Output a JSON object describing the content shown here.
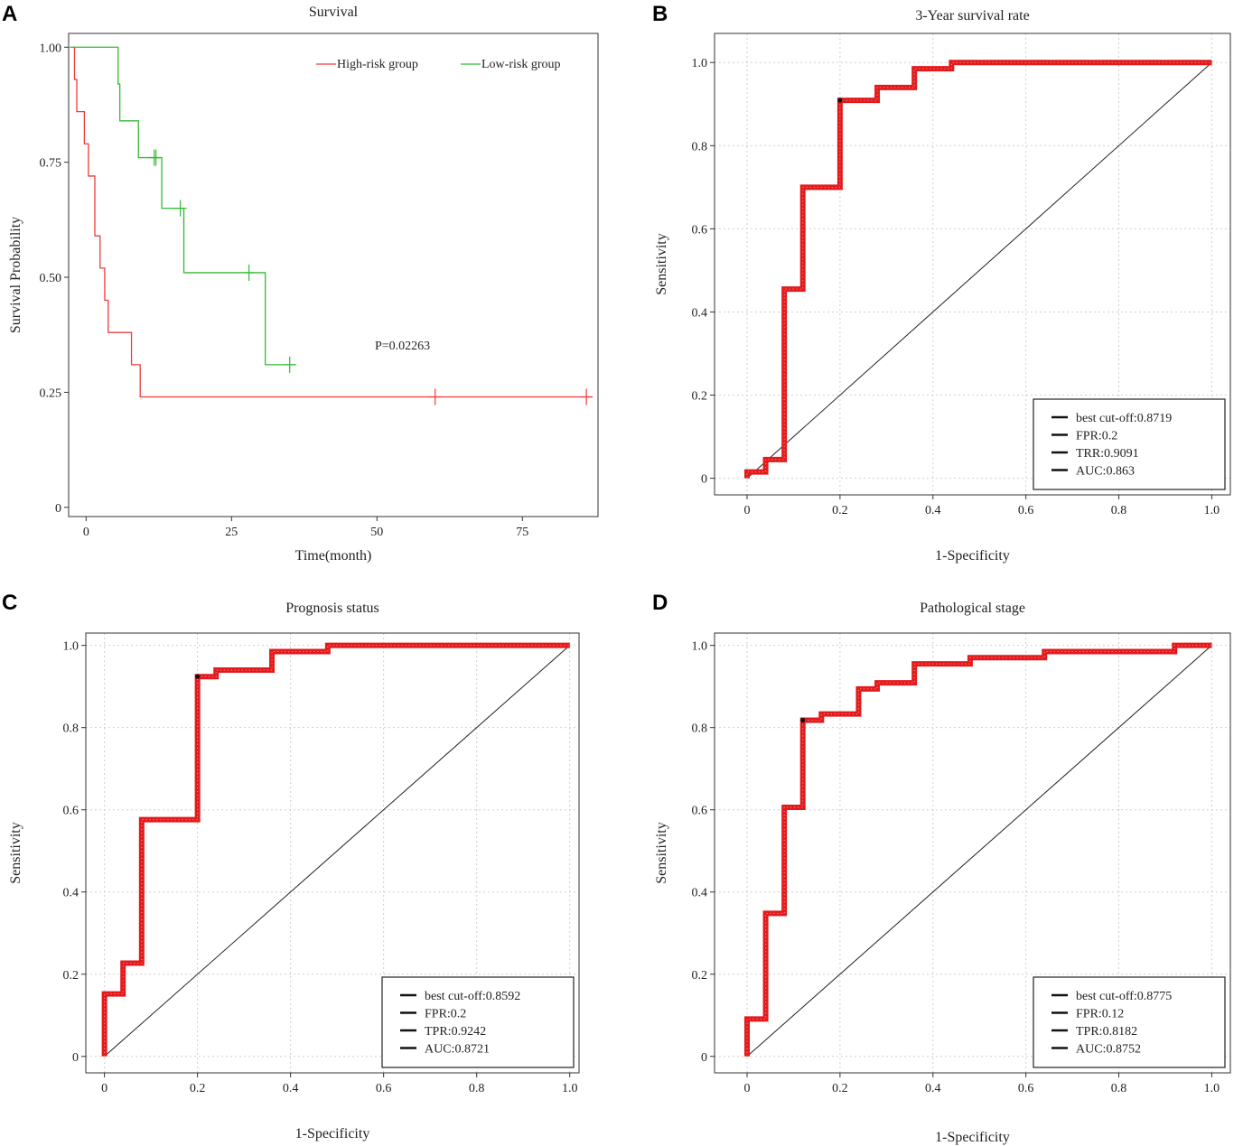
{
  "panels": [
    "A",
    "B",
    "C",
    "D"
  ],
  "chart_data": [
    {
      "type": "line",
      "subtype": "kaplan-meier",
      "title": "Survival",
      "xlabel": "Time(month)",
      "ylabel": "Survival Probability",
      "xlim": [
        -3,
        88
      ],
      "ylim": [
        -0.02,
        1.03
      ],
      "xticks": [
        0,
        25,
        50,
        75
      ],
      "xtick_labels": [
        "0",
        "25",
        "50",
        "75"
      ],
      "yticks": [
        0,
        0.25,
        0.5,
        0.75,
        1.0
      ],
      "ytick_labels": [
        "0",
        "0.25",
        "0.50",
        "0.75",
        "1.00"
      ],
      "grid": false,
      "legend_position": "top-right",
      "annotation": "P=0.02263",
      "series": [
        {
          "name": "High-risk group",
          "color": "#ee3b3b",
          "steps": [
            [
              -2.3,
              1.0
            ],
            [
              -2.0,
              0.93
            ],
            [
              -1.6,
              0.86
            ],
            [
              -0.3,
              0.79
            ],
            [
              0.4,
              0.72
            ],
            [
              1.5,
              0.59
            ],
            [
              2.4,
              0.52
            ],
            [
              3.2,
              0.45
            ],
            [
              3.8,
              0.38
            ],
            [
              7.8,
              0.31
            ],
            [
              9.3,
              0.24
            ],
            [
              87,
              0.24
            ]
          ],
          "censors": [
            [
              60,
              0.24
            ],
            [
              86,
              0.24
            ]
          ]
        },
        {
          "name": "Low-risk group",
          "color": "#33bb33",
          "steps": [
            [
              -2.8,
              1.0
            ],
            [
              5.5,
              0.92
            ],
            [
              5.8,
              0.84
            ],
            [
              9.0,
              0.76
            ],
            [
              13.0,
              0.65
            ],
            [
              16.8,
              0.51
            ],
            [
              30.8,
              0.31
            ],
            [
              36.0,
              0.31
            ]
          ],
          "censors": [
            [
              11.7,
              0.76
            ],
            [
              12.0,
              0.76
            ],
            [
              16.2,
              0.65
            ],
            [
              28.0,
              0.51
            ],
            [
              35.0,
              0.31
            ]
          ]
        }
      ]
    },
    {
      "type": "line",
      "subtype": "roc",
      "title": "3-Year survival rate",
      "xlabel": "1-Specificity",
      "ylabel": "Sensitivity",
      "xlim": [
        -0.07,
        1.04
      ],
      "ylim": [
        -0.04,
        1.07
      ],
      "ticks": [
        0,
        0.2,
        0.4,
        0.6,
        0.8,
        1.0
      ],
      "tick_labels": [
        "0",
        "0.2",
        "0.4",
        "0.6",
        "0.8",
        "1.0"
      ],
      "grid": true,
      "legend_position": "bottom-right",
      "curve_color": "#e31a1c",
      "roc": [
        [
          0,
          0
        ],
        [
          0,
          0.015
        ],
        [
          0.04,
          0.015
        ],
        [
          0.04,
          0.045
        ],
        [
          0.08,
          0.045
        ],
        [
          0.08,
          0.455
        ],
        [
          0.12,
          0.455
        ],
        [
          0.12,
          0.7
        ],
        [
          0.2,
          0.7
        ],
        [
          0.2,
          0.909
        ],
        [
          0.28,
          0.909
        ],
        [
          0.28,
          0.94
        ],
        [
          0.36,
          0.94
        ],
        [
          0.36,
          0.985
        ],
        [
          0.44,
          0.985
        ],
        [
          0.44,
          1.0
        ],
        [
          1.0,
          1.0
        ]
      ],
      "best_point": [
        0.2,
        0.9091
      ],
      "legend": [
        "best cut-off:0.8719",
        "FPR:0.2",
        "TRR:0.9091",
        "AUC:0.863"
      ]
    },
    {
      "type": "line",
      "subtype": "roc",
      "title": "Prognosis status",
      "xlabel": "1-Specificity",
      "ylabel": "Sensitivity",
      "xlim": [
        -0.04,
        1.02
      ],
      "ylim": [
        -0.04,
        1.03
      ],
      "ticks": [
        0,
        0.2,
        0.4,
        0.6,
        0.8,
        1.0
      ],
      "tick_labels": [
        "0",
        "0.2",
        "0.4",
        "0.6",
        "0.8",
        "1.0"
      ],
      "grid": true,
      "legend_position": "bottom-right",
      "curve_color": "#e31a1c",
      "roc": [
        [
          0,
          0
        ],
        [
          0,
          0.152
        ],
        [
          0.04,
          0.152
        ],
        [
          0.04,
          0.227
        ],
        [
          0.08,
          0.227
        ],
        [
          0.08,
          0.576
        ],
        [
          0.2,
          0.576
        ],
        [
          0.2,
          0.924
        ],
        [
          0.24,
          0.924
        ],
        [
          0.24,
          0.94
        ],
        [
          0.36,
          0.94
        ],
        [
          0.36,
          0.985
        ],
        [
          0.48,
          0.985
        ],
        [
          0.48,
          1.0
        ],
        [
          1.0,
          1.0
        ]
      ],
      "best_point": [
        0.2,
        0.9242
      ],
      "legend": [
        "best cut-off:0.8592",
        "FPR:0.2",
        "TPR:0.9242",
        "AUC:0.8721"
      ]
    },
    {
      "type": "line",
      "subtype": "roc",
      "title": "Pathological stage",
      "xlabel": "1-Specificity",
      "ylabel": "Sensitivity",
      "xlim": [
        -0.07,
        1.04
      ],
      "ylim": [
        -0.04,
        1.03
      ],
      "ticks": [
        0,
        0.2,
        0.4,
        0.6,
        0.8,
        1.0
      ],
      "tick_labels": [
        "0",
        "0.2",
        "0.4",
        "0.6",
        "0.8",
        "1.0"
      ],
      "grid": true,
      "legend_position": "bottom-right",
      "curve_color": "#e31a1c",
      "roc": [
        [
          0,
          0
        ],
        [
          0,
          0.091
        ],
        [
          0.04,
          0.091
        ],
        [
          0.04,
          0.348
        ],
        [
          0.08,
          0.348
        ],
        [
          0.08,
          0.606
        ],
        [
          0.12,
          0.606
        ],
        [
          0.12,
          0.818
        ],
        [
          0.16,
          0.818
        ],
        [
          0.16,
          0.833
        ],
        [
          0.24,
          0.833
        ],
        [
          0.24,
          0.894
        ],
        [
          0.28,
          0.894
        ],
        [
          0.28,
          0.909
        ],
        [
          0.36,
          0.909
        ],
        [
          0.36,
          0.955
        ],
        [
          0.48,
          0.955
        ],
        [
          0.48,
          0.97
        ],
        [
          0.64,
          0.97
        ],
        [
          0.64,
          0.985
        ],
        [
          0.92,
          0.985
        ],
        [
          0.92,
          1.0
        ],
        [
          1.0,
          1.0
        ]
      ],
      "best_point": [
        0.12,
        0.8182
      ],
      "legend": [
        "best cut-off:0.8775",
        "FPR:0.12",
        "TPR:0.8182",
        "AUC:0.8752"
      ]
    }
  ]
}
